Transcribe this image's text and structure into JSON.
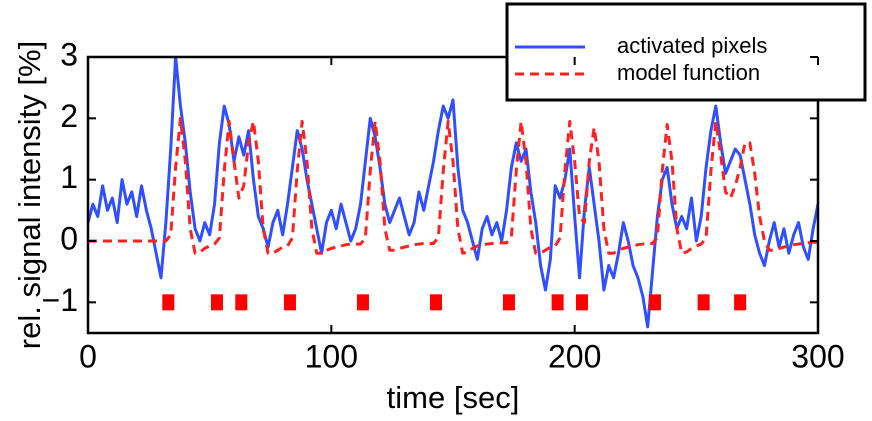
{
  "chart_data": {
    "type": "line",
    "xlabel": "time [sec]",
    "ylabel": "rel. signal intensity [%]",
    "xlim": [
      0,
      300
    ],
    "ylim": [
      -1.5,
      3
    ],
    "xticks": [
      0,
      100,
      200,
      300
    ],
    "yticks": [
      {
        "value": -1,
        "label": "−1"
      },
      0,
      1,
      2,
      3
    ],
    "legend": "top-right",
    "x": [
      0,
      2,
      4,
      6,
      8,
      10,
      12,
      14,
      16,
      18,
      20,
      22,
      24,
      26,
      28,
      30,
      32,
      34,
      36,
      38,
      40,
      42,
      44,
      46,
      48,
      50,
      52,
      54,
      56,
      58,
      60,
      62,
      64,
      66,
      68,
      70,
      72,
      74,
      76,
      78,
      80,
      82,
      84,
      86,
      88,
      90,
      92,
      94,
      96,
      98,
      100,
      102,
      104,
      106,
      108,
      110,
      112,
      114,
      116,
      118,
      120,
      122,
      124,
      126,
      128,
      130,
      132,
      134,
      136,
      138,
      140,
      142,
      144,
      146,
      148,
      150,
      152,
      154,
      156,
      158,
      160,
      162,
      164,
      166,
      168,
      170,
      172,
      174,
      176,
      178,
      180,
      182,
      184,
      186,
      188,
      190,
      192,
      194,
      196,
      198,
      200,
      202,
      204,
      206,
      208,
      210,
      212,
      214,
      216,
      218,
      220,
      222,
      224,
      226,
      228,
      230,
      232,
      234,
      236,
      238,
      240,
      242,
      244,
      246,
      248,
      250,
      252,
      254,
      256,
      258,
      260,
      262,
      264,
      266,
      268,
      270,
      272,
      274,
      276,
      278,
      280,
      282,
      284,
      286,
      288,
      290,
      292,
      294,
      296,
      298,
      300
    ],
    "series": [
      {
        "name": "activated pixels",
        "color": "#3050ff",
        "style": "solid",
        "values": [
          0.3,
          0.6,
          0.4,
          0.9,
          0.5,
          0.7,
          0.3,
          1.0,
          0.6,
          0.8,
          0.4,
          0.9,
          0.5,
          0.2,
          -0.2,
          -0.6,
          0.3,
          1.5,
          3.0,
          2.2,
          1.6,
          0.8,
          0.2,
          0.0,
          0.3,
          0.1,
          0.6,
          1.6,
          2.2,
          1.9,
          1.3,
          1.7,
          1.4,
          1.8,
          1.0,
          0.4,
          0.2,
          -0.1,
          0.3,
          0.5,
          0.1,
          0.6,
          1.2,
          1.8,
          1.5,
          1.0,
          0.6,
          0.2,
          -0.2,
          0.3,
          0.5,
          0.2,
          0.6,
          0.3,
          0.0,
          0.2,
          0.6,
          1.3,
          2.0,
          1.7,
          1.2,
          0.6,
          0.3,
          0.5,
          0.7,
          0.4,
          0.1,
          0.3,
          0.8,
          0.5,
          0.9,
          1.3,
          1.8,
          2.2,
          2.0,
          2.3,
          1.2,
          0.5,
          0.3,
          0.0,
          -0.3,
          0.2,
          0.4,
          0.1,
          0.3,
          0.0,
          0.5,
          1.2,
          1.6,
          1.3,
          1.5,
          0.8,
          0.3,
          -0.4,
          -0.8,
          -0.3,
          0.9,
          0.7,
          1.0,
          1.5,
          0.4,
          -0.6,
          0.5,
          1.2,
          0.6,
          0.0,
          -0.8,
          -0.4,
          -0.6,
          -0.2,
          0.3,
          0.0,
          -0.4,
          -0.6,
          -0.9,
          -1.4,
          -0.5,
          0.4,
          1.0,
          1.2,
          0.6,
          0.2,
          0.4,
          0.2,
          0.7,
          0.0,
          0.4,
          1.2,
          1.8,
          2.2,
          1.6,
          1.1,
          1.3,
          1.5,
          1.4,
          1.0,
          0.6,
          0.1,
          -0.2,
          -0.4,
          0.0,
          0.3,
          -0.1,
          0.2,
          -0.2,
          0.1,
          0.3,
          -0.1,
          -0.3,
          0.2,
          0.6
        ]
      },
      {
        "name": "model function",
        "color": "#ff2020",
        "style": "dashed",
        "values": [
          0,
          0,
          0,
          0,
          0,
          0,
          0,
          0,
          0,
          0,
          0,
          0,
          0,
          0,
          0,
          0,
          0,
          0.1,
          1.2,
          2.0,
          1.3,
          0.2,
          -0.2,
          -0.18,
          -0.12,
          -0.08,
          -0.05,
          0.05,
          1.15,
          1.95,
          1.3,
          0.7,
          0.9,
          1.6,
          1.95,
          1.3,
          0.2,
          -0.2,
          -0.2,
          -0.15,
          -0.1,
          -0.08,
          0.05,
          1.15,
          1.95,
          1.3,
          0.2,
          -0.2,
          -0.2,
          -0.15,
          -0.12,
          -0.1,
          -0.08,
          -0.06,
          -0.05,
          -0.05,
          -0.05,
          0.05,
          1.15,
          1.95,
          1.3,
          0.2,
          -0.15,
          -0.15,
          -0.12,
          -0.1,
          -0.08,
          -0.06,
          -0.05,
          -0.04,
          -0.04,
          -0.04,
          0.06,
          1.15,
          1.95,
          1.3,
          0.2,
          -0.2,
          -0.18,
          -0.12,
          -0.08,
          -0.06,
          -0.05,
          -0.04,
          -0.03,
          -0.03,
          -0.03,
          0.07,
          1.15,
          1.95,
          1.3,
          0.2,
          -0.2,
          -0.2,
          -0.15,
          -0.1,
          -0.08,
          0.05,
          1.15,
          1.95,
          1.3,
          0.4,
          0.3,
          1.3,
          1.85,
          1.3,
          0.2,
          -0.2,
          -0.2,
          -0.15,
          -0.12,
          -0.1,
          -0.08,
          -0.06,
          -0.05,
          -0.04,
          -0.04,
          0.06,
          1.15,
          1.9,
          1.3,
          0.2,
          -0.2,
          -0.18,
          -0.12,
          -0.08,
          -0.05,
          0.05,
          1.15,
          1.95,
          1.4,
          0.8,
          0.7,
          0.9,
          1.2,
          1.6,
          1.6,
          1.1,
          0.4,
          0.0,
          -0.15,
          -0.15,
          -0.12,
          -0.1,
          -0.08,
          -0.06,
          -0.05,
          -0.04,
          -0.03,
          -0.02,
          -0.02
        ]
      }
    ],
    "stimuli": {
      "color": "#ff0000",
      "x": [
        33,
        53,
        63,
        83,
        113,
        143,
        173,
        193,
        203,
        233,
        253,
        268
      ],
      "values": [
        -1,
        -1,
        -1,
        -1,
        -1,
        -1,
        -1,
        -1,
        -1,
        -1,
        -1,
        -1
      ]
    }
  }
}
